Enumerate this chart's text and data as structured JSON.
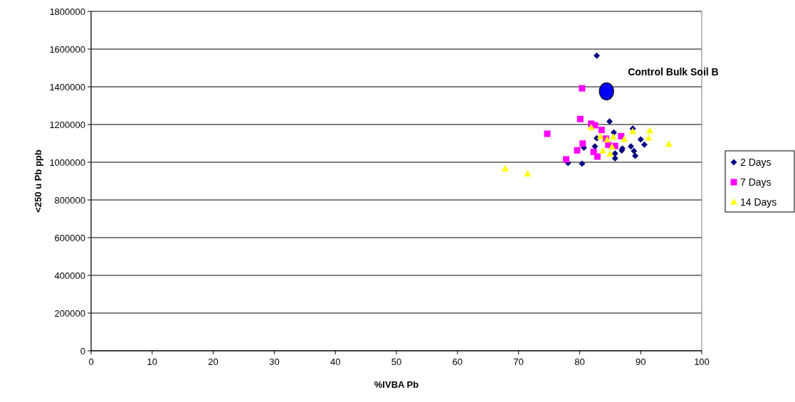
{
  "chart_data": {
    "type": "scatter",
    "xlabel": "%IVBA Pb",
    "ylabel": "<250 u Pb ppb",
    "xlim": [
      0,
      100
    ],
    "xticks": [
      0,
      10,
      20,
      30,
      40,
      50,
      60,
      70,
      80,
      90,
      100
    ],
    "ylim": [
      0,
      1800000
    ],
    "yticks": [
      0,
      200000,
      400000,
      600000,
      800000,
      1000000,
      1200000,
      1400000,
      1600000,
      1800000
    ],
    "grid": "y",
    "legend": "right",
    "series": [
      {
        "name": "2 Days",
        "color": "#000080",
        "marker": "diamond",
        "x": [
          82.8,
          84.9,
          88.7,
          85.6,
          82.8,
          82.5,
          80.7,
          78.1,
          80.4,
          85.8,
          86.9,
          88.4,
          89.1,
          88.9,
          90.0,
          90.6,
          85.8,
          87.0
        ],
        "values": [
          1565000,
          1216000,
          1178000,
          1158000,
          1127000,
          1084000,
          1077000,
          996000,
          992000,
          1021000,
          1062000,
          1084000,
          1034000,
          1059000,
          1121000,
          1093000,
          1046000,
          1073000
        ]
      },
      {
        "name": "7 Days",
        "color": "#ff00ff",
        "marker": "square",
        "x": [
          80.4,
          80.1,
          74.7,
          81.9,
          82.5,
          83.6,
          80.5,
          79.6,
          77.8,
          82.3,
          82.9,
          84.3,
          86.8,
          85.8,
          84.7
        ],
        "values": [
          1392000,
          1229000,
          1151000,
          1204000,
          1196000,
          1171000,
          1099000,
          1063000,
          1015000,
          1055000,
          1030000,
          1125000,
          1138000,
          1086000,
          1093000
        ]
      },
      {
        "name": "14 Days",
        "color": "#ffff00",
        "marker": "triangle",
        "x": [
          67.8,
          71.5,
          81.9,
          83.4,
          84.5,
          85.5,
          87.3,
          88.7,
          91.5,
          91.3,
          94.6,
          85.3,
          83.8,
          85.0
        ],
        "values": [
          965000,
          938000,
          1183000,
          1135000,
          1118000,
          1133000,
          1121000,
          1162000,
          1166000,
          1127000,
          1095000,
          1080000,
          1059000,
          1043000
        ]
      },
      {
        "color": "#0000ff",
        "marker": "circle",
        "x": [
          84.4
        ],
        "values": [
          1376000
        ]
      }
    ],
    "annotations": [
      {
        "text": "Control Bulk Soil B",
        "x": 84.4,
        "y": 1376000
      }
    ]
  }
}
